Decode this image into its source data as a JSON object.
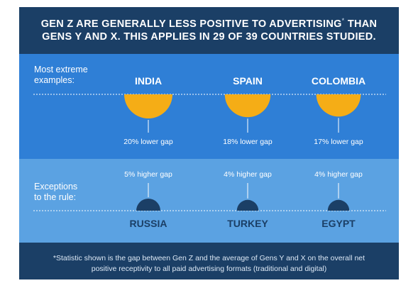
{
  "header": {
    "line1": "GEN Z ARE GENERALLY LESS POSITIVE TO ADVERTISING",
    "asterisk": "*",
    "line1_end": " THAN",
    "line2": "GENS Y AND X. THIS APPLIES IN 29 OF 39 COUNTRIES STUDIED."
  },
  "rows": {
    "extreme_label_1": "Most extreme",
    "extreme_label_2": "examples:",
    "exception_label_1": "Exceptions",
    "exception_label_2": "to the rule:"
  },
  "footer": {
    "line1": "*Statistic shown is the gap between Gen Z and the average of Gens Y and X on the overall net",
    "line2": "positive receptivity to all  paid advertising formats (traditional and digital)"
  },
  "colors": {
    "header_bg": "#1b3f66",
    "band_top": "#2f7fd6",
    "band_bottom": "#5ba2e2",
    "lower_gap": "#f5ad16",
    "higher_gap": "#1b3f66"
  },
  "chart_data": {
    "type": "bubble",
    "unit": "% gap",
    "series": [
      {
        "name": "lower gap",
        "points": [
          {
            "country": "INDIA",
            "value": 20,
            "label": "20% lower gap"
          },
          {
            "country": "SPAIN",
            "value": 18,
            "label": "18% lower gap"
          },
          {
            "country": "COLOMBIA",
            "value": 17,
            "label": "17% lower gap"
          }
        ]
      },
      {
        "name": "higher gap",
        "points": [
          {
            "country": "RUSSIA",
            "value": 5,
            "label": "5% higher gap"
          },
          {
            "country": "TURKEY",
            "value": 4,
            "label": "4% higher gap"
          },
          {
            "country": "EGYPT",
            "value": 4,
            "label": "4% higher gap"
          }
        ]
      }
    ]
  }
}
